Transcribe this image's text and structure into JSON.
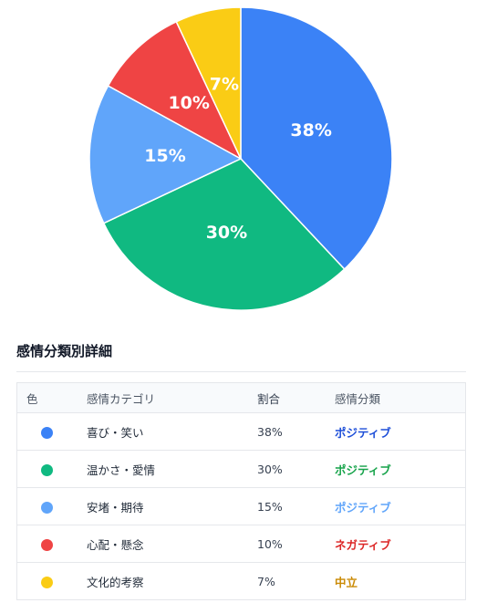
{
  "chart_data": {
    "type": "pie",
    "slices": [
      {
        "label": "喜び・笑い",
        "value": 38,
        "label_text": "38%",
        "color": "#3b82f6"
      },
      {
        "label": "温かさ・愛情",
        "value": 30,
        "label_text": "30%",
        "color": "#10b981"
      },
      {
        "label": "安堵・期待",
        "value": 15,
        "label_text": "15%",
        "color": "#60a5fa"
      },
      {
        "label": "心配・懸念",
        "value": 10,
        "label_text": "10%",
        "color": "#ef4444"
      },
      {
        "label": "文化的考察",
        "value": 7,
        "label_text": "7%",
        "color": "#facc15"
      }
    ]
  },
  "section_title": "感情分類別詳細",
  "table": {
    "headers": {
      "color": "色",
      "category": "感情カテゴリ",
      "ratio": "割合",
      "class": "感情分類"
    },
    "rows": [
      {
        "dot": "#3b82f6",
        "category": "喜び・笑い",
        "ratio": "38%",
        "class": "ポジティブ",
        "class_color": "#1d4ed8"
      },
      {
        "dot": "#10b981",
        "category": "温かさ・愛情",
        "ratio": "30%",
        "class": "ポジティブ",
        "class_color": "#16a34a"
      },
      {
        "dot": "#60a5fa",
        "category": "安堵・期待",
        "ratio": "15%",
        "class": "ポジティブ",
        "class_color": "#60a5fa"
      },
      {
        "dot": "#ef4444",
        "category": "心配・懸念",
        "ratio": "10%",
        "class": "ネガティブ",
        "class_color": "#dc2626"
      },
      {
        "dot": "#facc15",
        "category": "文化的考察",
        "ratio": "7%",
        "class": "中立",
        "class_color": "#ca8a04"
      }
    ]
  }
}
